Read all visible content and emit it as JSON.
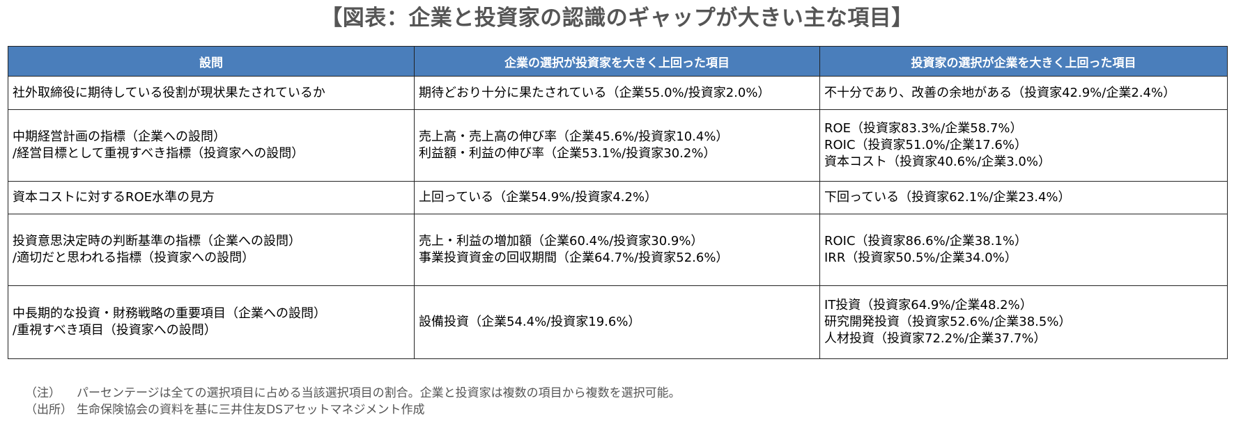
{
  "title": "【図表：企業と投資家の認識のギャップが大きい主な項目】",
  "table": {
    "headers": [
      "設問",
      "企業の選択が投資家を大きく上回った項目",
      "投資家の選択が企業を大きく上回った項目"
    ],
    "rows": [
      {
        "question": [
          "社外取締役に期待している役割が現状果たされているか"
        ],
        "company": [
          "期待どおり十分に果たされている（企業55.0%/投資家2.0%）"
        ],
        "investor": [
          "不十分であり、改善の余地がある（投資家42.9%/企業2.4%）"
        ]
      },
      {
        "question": [
          "中期経営計画の指標（企業への設問）",
          "/経営目標として重視すべき指標（投資家への設問）"
        ],
        "company": [
          "売上高・売上高の伸び率（企業45.6%/投資家10.4%）",
          "利益額・利益の伸び率（企業53.1%/投資家30.2%）"
        ],
        "investor": [
          "ROE（投資家83.3%/企業58.7%）",
          "ROIC（投資家51.0%/企業17.6%）",
          "資本コスト（投資家40.6%/企業3.0%）"
        ]
      },
      {
        "question": [
          "資本コストに対するROE水準の見方"
        ],
        "company": [
          "上回っている（企業54.9%/投資家4.2%）"
        ],
        "investor": [
          "下回っている（投資家62.1%/企業23.4%）"
        ]
      },
      {
        "question": [
          "投資意思決定時の判断基準の指標（企業への設問）",
          "/適切だと思われる指標（投資家への設問）"
        ],
        "company": [
          "売上・利益の増加額（企業60.4%/投資家30.9%）",
          "事業投資資金の回収期間（企業64.7%/投資家52.6%）"
        ],
        "investor": [
          "ROIC（投資家86.6%/企業38.1%）",
          "IRR（投資家50.5%/企業34.0%）"
        ]
      },
      {
        "question": [
          "中長期的な投資・財務戦略の重要項目（企業への設問）",
          "/重視すべき項目（投資家への設問）"
        ],
        "company": [
          "設備投資（企業54.4%/投資家19.6%）"
        ],
        "investor": [
          "IT投資（投資家64.9%/企業48.2%）",
          "研究開発投資（投資家52.6%/企業38.5%）",
          "人材投資（投資家72.2%/企業37.7%）"
        ]
      }
    ]
  },
  "notes": [
    {
      "key": "（注）",
      "text": "パーセンテージは全ての選択項目に占める当該選択項目の割合。企業と投資家は複数の項目から複数を選択可能。"
    },
    {
      "key": "（出所）",
      "text": "生命保険協会の資料を基に三井住友DSアセットマネジメント作成"
    }
  ],
  "colors": {
    "header_bg": "#4a7ebb",
    "header_text": "#ffffff",
    "title_text": "#555555"
  }
}
